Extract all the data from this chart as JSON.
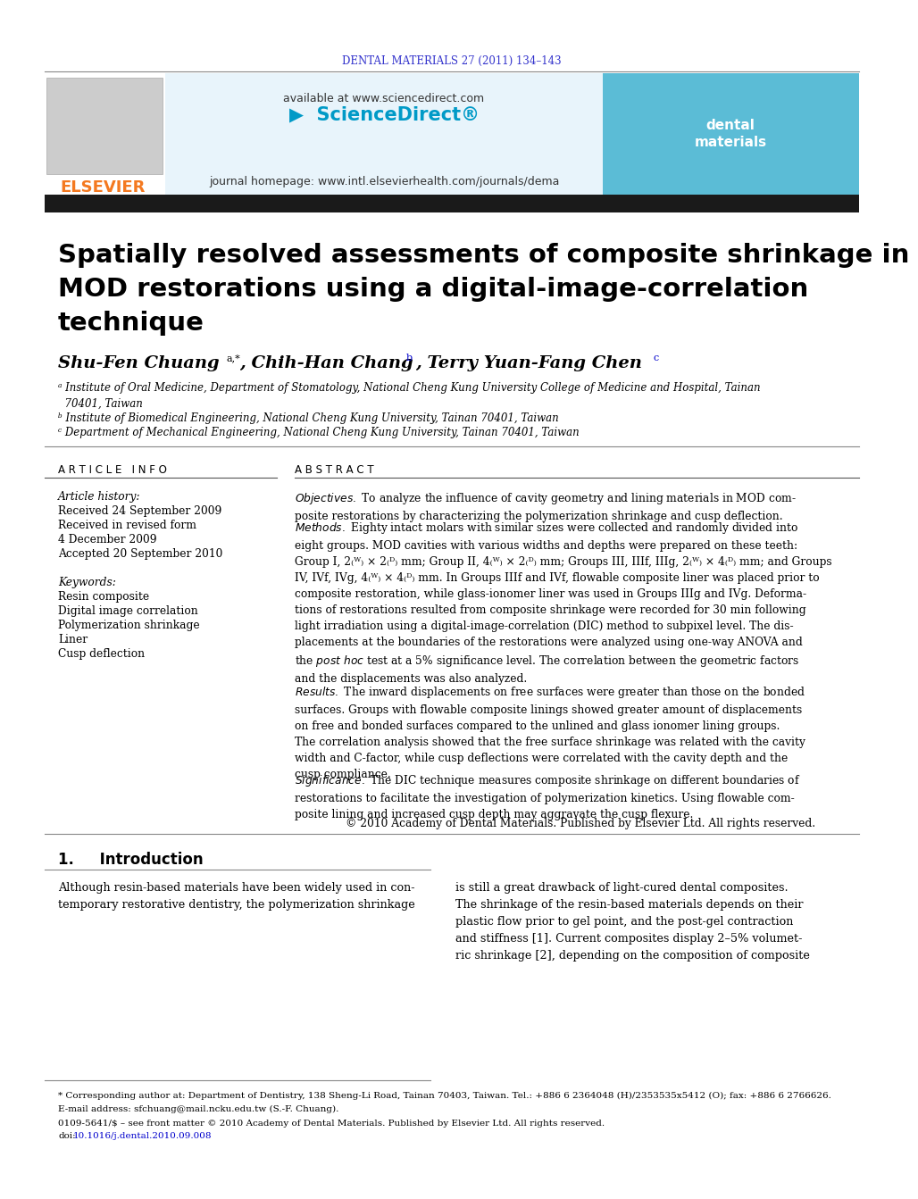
{
  "journal_header": "DENTAL MATERIALS 27 (2011) 134–143",
  "journal_header_color": "#3333cc",
  "title": "Spatially resolved assessments of composite shrinkage in\nMOD restorations using a digital-image-correlation\ntechnique",
  "article_info_label": "ARTICLE INFO",
  "abstract_label": "ABSTRACT",
  "article_history_label": "Article history:",
  "received1": "Received 24 September 2009",
  "received2": "Received in revised form",
  "received2b": "4 December 2009",
  "accepted": "Accepted 20 September 2010",
  "keywords_label": "Keywords:",
  "kw1": "Resin composite",
  "kw2": "Digital image correlation",
  "kw3": "Polymerization shrinkage",
  "kw4": "Liner",
  "kw5": "Cusp deflection",
  "abstract_copyright": "© 2010 Academy of Dental Materials. Published by Elsevier Ltd. All rights reserved.",
  "intro_label": "1.     Introduction",
  "footnote_star": "* Corresponding author at: Department of Dentistry, 138 Sheng-Li Road, Tainan 70403, Taiwan. Tel.: +886 6 2364048 (H)/2353535x5412 (O); fax: +886 6 2766626.",
  "footnote_email": "E-mail address: sfchuang@mail.ncku.edu.tw (S.-F. Chuang).",
  "footnote_issn": "0109-5641/$ – see front matter © 2010 Academy of Dental Materials. Published by Elsevier Ltd. All rights reserved.",
  "footnote_doi_prefix": "doi:",
  "footnote_doi_link": "10.1016/j.dental.2010.09.008",
  "elsevier_color": "#f47920",
  "bg_color": "#ffffff",
  "black_bar_color": "#1a1a1a",
  "journal_homepage": "journal homepage: www.intl.elsevierhealth.com/journals/dema",
  "available_at": "available at www.sciencedirect.com"
}
